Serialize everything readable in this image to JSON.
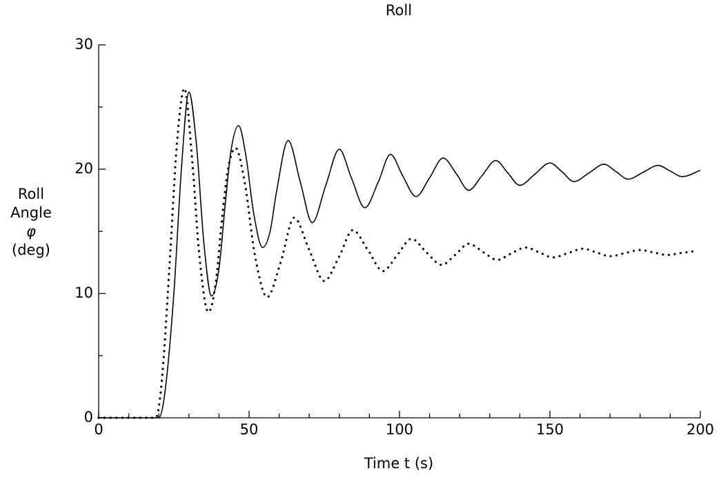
{
  "chart_data": {
    "type": "line",
    "title": "Roll",
    "xlabel": "Time t (s)",
    "ylabel": [
      "Roll",
      "Angle",
      "φ",
      "(deg)"
    ],
    "xlim": [
      0,
      200
    ],
    "xticks": [
      0,
      50,
      100,
      150,
      200
    ],
    "xminorticks": [
      10,
      20,
      30,
      40,
      60,
      70,
      80,
      90,
      110,
      120,
      130,
      140,
      160,
      170,
      180,
      190
    ],
    "ylim": [
      0,
      30
    ],
    "yticks": [
      0,
      10,
      20,
      30
    ],
    "yminorticks": [
      5,
      15,
      25
    ],
    "grid": false,
    "series": [
      {
        "color": "#000000",
        "style": "solid",
        "x": [
          0,
          20,
          22,
          25,
          27.5,
          30,
          32.5,
          35,
          37.5,
          40,
          42,
          44,
          46.5,
          49,
          51.5,
          54.5,
          57,
          59,
          63,
          67,
          71,
          75.5,
          80,
          84,
          88.5,
          93,
          97,
          101,
          105.5,
          110,
          114.5,
          119,
          123,
          127.5,
          132,
          136,
          140,
          145,
          150,
          154,
          158,
          163,
          168,
          172,
          176,
          181,
          186,
          190,
          194,
          200
        ],
        "values": [
          0,
          0,
          2,
          10,
          20,
          26.2,
          22,
          14,
          9.8,
          12,
          17,
          21.5,
          23.5,
          21,
          16.5,
          13.7,
          15,
          18,
          22.3,
          19,
          15.7,
          18.7,
          21.6,
          19.3,
          16.9,
          19,
          21.2,
          19.5,
          17.8,
          19.3,
          20.9,
          19.6,
          18.3,
          19.5,
          20.7,
          19.7,
          18.7,
          19.6,
          20.5,
          19.8,
          19.0,
          19.7,
          20.4,
          19.8,
          19.2,
          19.75,
          20.3,
          19.85,
          19.4,
          19.9
        ]
      },
      {
        "color": "#000000",
        "style": "dotted",
        "x": [
          0,
          19,
          21,
          23.5,
          26,
          28.5,
          31,
          33.5,
          36.5,
          39,
          41,
          43,
          45.5,
          48.5,
          52,
          56,
          60.5,
          65,
          70,
          75,
          80,
          84.5,
          89.5,
          94.5,
          99,
          104,
          109,
          114,
          118.5,
          123,
          128,
          132.5,
          137,
          142,
          146.5,
          151,
          156,
          161,
          165.5,
          170,
          175,
          180,
          184.5,
          189,
          193.5,
          198
        ],
        "values": [
          0,
          0,
          3,
          12,
          22,
          26.5,
          21,
          13,
          8.5,
          11,
          16,
          20,
          21.7,
          19,
          13,
          9.7,
          12.5,
          16.1,
          13.5,
          11,
          13,
          15.1,
          13.5,
          11.8,
          13,
          14.4,
          13.3,
          12.3,
          13.1,
          14,
          13.3,
          12.7,
          13.2,
          13.7,
          13.3,
          12.9,
          13.25,
          13.6,
          13.3,
          13,
          13.25,
          13.5,
          13.3,
          13.1,
          13.25,
          13.4
        ]
      }
    ]
  }
}
